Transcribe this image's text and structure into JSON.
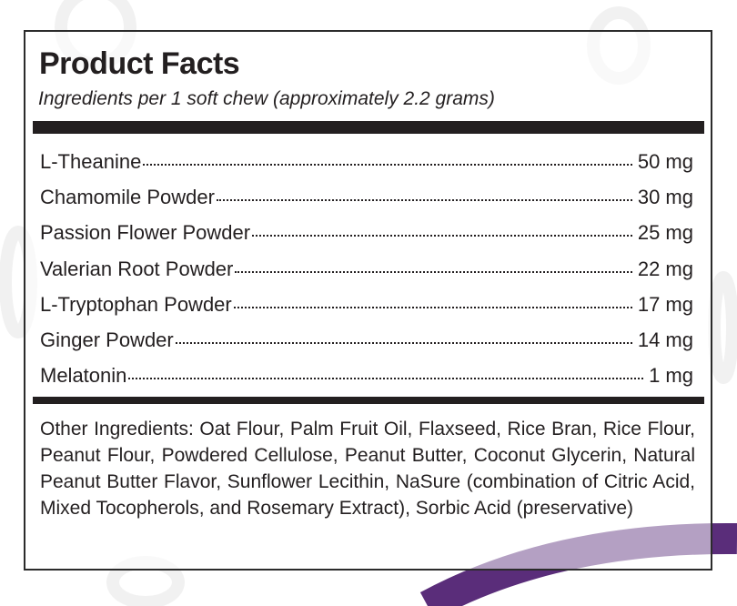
{
  "header": {
    "title": "Product Facts",
    "subtitle": "Ingredients per 1 soft chew (approximately 2.2 grams)"
  },
  "ingredients": [
    {
      "name": "L-Theanine ",
      "amount": "50 mg"
    },
    {
      "name": "Chamomile Powder",
      "amount": "30 mg"
    },
    {
      "name": "Passion Flower Powder",
      "amount": "25 mg"
    },
    {
      "name": "Valerian Root Powder",
      "amount": "22 mg"
    },
    {
      "name": "L-Tryptophan Powder",
      "amount": "17 mg"
    },
    {
      "name": "Ginger Powder",
      "amount": "14 mg"
    },
    {
      "name": "Melatonin",
      "amount": "1 mg"
    }
  ],
  "other_ingredients": "Other Ingredients: Oat Flour, Palm Fruit Oil, Flaxseed, Rice Bran, Rice Flour, Peanut Flour, Powdered Cellulose, Peanut Butter, Coconut Glycerin, Natural Peanut Butter Flavor, Sunflower Lecithin, NaSure (combination of Citric Acid, Mixed Tocopherols, and Rosemary Extract), Sorbic Acid (preservative)",
  "colors": {
    "accent_arc": "#5a2d7a",
    "text": "#231f20",
    "background_pattern": "#f1f1f1"
  }
}
